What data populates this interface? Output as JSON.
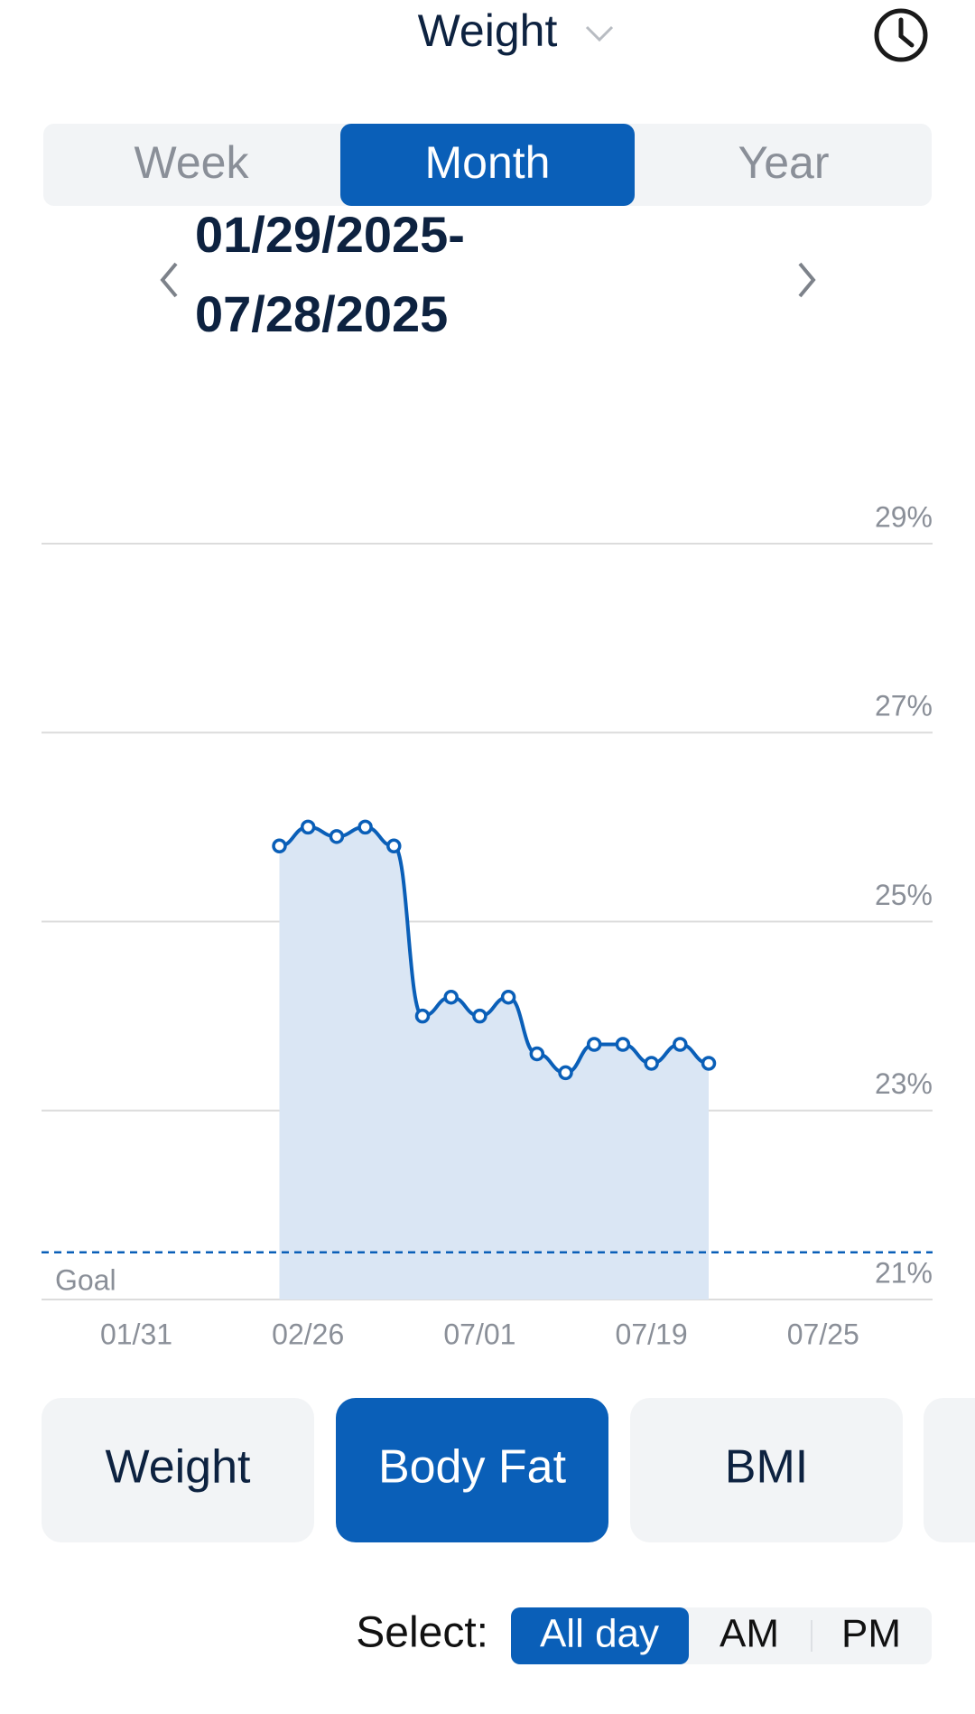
{
  "header": {
    "title": "Weight"
  },
  "period_tabs": {
    "options": [
      "Week",
      "Month",
      "Year"
    ],
    "selected": 1
  },
  "date_range": [
    "01/29/2025-",
    "07/28/2025"
  ],
  "chart_data": {
    "type": "line",
    "categories": [
      "01/31",
      null,
      null,
      null,
      null,
      null,
      "02/26",
      null,
      null,
      null,
      null,
      null,
      "07/01",
      null,
      null,
      null,
      null,
      null,
      "07/19",
      null,
      null,
      null,
      null,
      null,
      "07/25"
    ],
    "values": [
      null,
      null,
      null,
      null,
      null,
      25.8,
      26.0,
      25.9,
      26.0,
      25.8,
      24.0,
      24.2,
      24.0,
      24.2,
      23.6,
      23.4,
      23.7,
      23.7,
      23.5,
      23.7,
      23.5,
      null,
      null,
      null,
      null
    ],
    "color": "#0a5fb8",
    "area": true,
    "area_color": "#dae6f4",
    "goal": {
      "label": "Goal",
      "value": 21.5
    },
    "ylim": [
      21,
      29
    ],
    "yticks": [
      {
        "value": 21,
        "label": "21%"
      },
      {
        "value": 23,
        "label": "23%"
      },
      {
        "value": 25,
        "label": "25%"
      },
      {
        "value": 27,
        "label": "27%"
      },
      {
        "value": 29,
        "label": "29%"
      }
    ],
    "grid": true
  },
  "metric_tabs": {
    "options": [
      "Weight",
      "Body Fat",
      "BMI"
    ],
    "selected": 1
  },
  "select": {
    "label": "Select:",
    "options": [
      "All day",
      "AM",
      "PM"
    ],
    "selected": 0
  }
}
